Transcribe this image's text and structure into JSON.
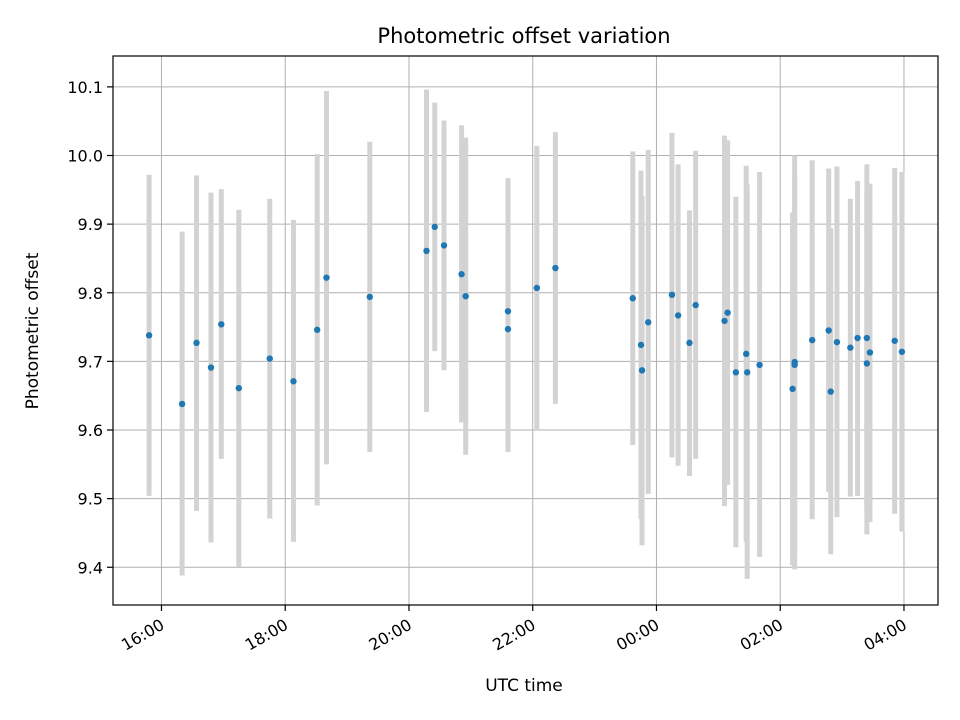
{
  "chart_data": {
    "type": "scatter",
    "title": "Photometric offset variation",
    "xlabel": "UTC time",
    "ylabel": "Photometric offset",
    "x_axis_kind": "time",
    "x_range": [
      "15:13",
      "04:33 +1 day"
    ],
    "ylim": [
      9.345,
      10.145
    ],
    "grid": true,
    "x_ticks": [
      {
        "time": "16:00",
        "label": "16:00"
      },
      {
        "time": "18:00",
        "label": "18:00"
      },
      {
        "time": "20:00",
        "label": "20:00"
      },
      {
        "time": "22:00",
        "label": "22:00"
      },
      {
        "time": "00:00 +1 day",
        "label": "00:00"
      },
      {
        "time": "02:00 +1 day",
        "label": "02:00"
      },
      {
        "time": "04:00 +1 day",
        "label": "04:00"
      }
    ],
    "y_ticks": [
      {
        "value": 9.4,
        "label": "9.4"
      },
      {
        "value": 9.5,
        "label": "9.5"
      },
      {
        "value": 9.6,
        "label": "9.6"
      },
      {
        "value": 9.7,
        "label": "9.7"
      },
      {
        "value": 9.8,
        "label": "9.8"
      },
      {
        "value": 9.9,
        "label": "9.9"
      },
      {
        "value": 10.0,
        "label": "10.0"
      },
      {
        "value": 10.1,
        "label": "10.1"
      }
    ],
    "marker_color": "#1f77b4",
    "errorbar_color": "#d3d3d3",
    "points": [
      {
        "time": "15:48",
        "y": 9.738,
        "ylow": 9.504,
        "yhigh": 9.972
      },
      {
        "time": "16:20",
        "y": 9.638,
        "ylow": 9.388,
        "yhigh": 9.889
      },
      {
        "time": "16:34",
        "y": 9.727,
        "ylow": 9.482,
        "yhigh": 9.971
      },
      {
        "time": "16:48",
        "y": 9.691,
        "ylow": 9.436,
        "yhigh": 9.946
      },
      {
        "time": "16:58",
        "y": 9.754,
        "ylow": 9.558,
        "yhigh": 9.951
      },
      {
        "time": "17:15",
        "y": 9.661,
        "ylow": 9.401,
        "yhigh": 9.921
      },
      {
        "time": "17:45",
        "y": 9.704,
        "ylow": 9.471,
        "yhigh": 9.937
      },
      {
        "time": "18:08",
        "y": 9.671,
        "ylow": 9.437,
        "yhigh": 9.906
      },
      {
        "time": "18:31",
        "y": 9.746,
        "ylow": 9.49,
        "yhigh": 10.002
      },
      {
        "time": "18:40",
        "y": 9.822,
        "ylow": 9.55,
        "yhigh": 10.094
      },
      {
        "time": "19:22",
        "y": 9.794,
        "ylow": 9.568,
        "yhigh": 10.02
      },
      {
        "time": "20:17",
        "y": 9.861,
        "ylow": 9.626,
        "yhigh": 10.096
      },
      {
        "time": "20:25",
        "y": 9.896,
        "ylow": 9.715,
        "yhigh": 10.077
      },
      {
        "time": "20:34",
        "y": 9.869,
        "ylow": 9.687,
        "yhigh": 10.051
      },
      {
        "time": "20:51",
        "y": 9.827,
        "ylow": 9.611,
        "yhigh": 10.044
      },
      {
        "time": "20:55",
        "y": 9.795,
        "ylow": 9.564,
        "yhigh": 10.026
      },
      {
        "time": "21:36",
        "y": 9.773,
        "ylow": 9.62,
        "yhigh": 9.927
      },
      {
        "time": "21:36",
        "y": 9.747,
        "ylow": 9.568,
        "yhigh": 9.967
      },
      {
        "time": "22:04",
        "y": 9.807,
        "ylow": 9.6,
        "yhigh": 10.014
      },
      {
        "time": "22:22",
        "y": 9.836,
        "ylow": 9.638,
        "yhigh": 10.034
      },
      {
        "time": "23:37",
        "y": 9.792,
        "ylow": 9.578,
        "yhigh": 10.006
      },
      {
        "time": "23:45",
        "y": 9.724,
        "ylow": 9.47,
        "yhigh": 9.978
      },
      {
        "time": "23:46",
        "y": 9.687,
        "ylow": 9.432,
        "yhigh": 9.941
      },
      {
        "time": "23:52",
        "y": 9.757,
        "ylow": 9.507,
        "yhigh": 10.008
      },
      {
        "time": "00:15 +1 day",
        "y": 9.797,
        "ylow": 9.56,
        "yhigh": 10.033
      },
      {
        "time": "00:21 +1 day",
        "y": 9.767,
        "ylow": 9.548,
        "yhigh": 9.987
      },
      {
        "time": "00:32 +1 day",
        "y": 9.727,
        "ylow": 9.533,
        "yhigh": 9.92
      },
      {
        "time": "00:38 +1 day",
        "y": 9.782,
        "ylow": 9.558,
        "yhigh": 10.007
      },
      {
        "time": "01:06 +1 day",
        "y": 9.759,
        "ylow": 9.489,
        "yhigh": 10.029
      },
      {
        "time": "01:09 +1 day",
        "y": 9.771,
        "ylow": 9.52,
        "yhigh": 10.022
      },
      {
        "time": "01:17 +1 day",
        "y": 9.684,
        "ylow": 9.429,
        "yhigh": 9.94
      },
      {
        "time": "01:27 +1 day",
        "y": 9.711,
        "ylow": 9.437,
        "yhigh": 9.985
      },
      {
        "time": "01:28 +1 day",
        "y": 9.684,
        "ylow": 9.383,
        "yhigh": 9.958
      },
      {
        "time": "01:40 +1 day",
        "y": 9.695,
        "ylow": 9.415,
        "yhigh": 9.976
      },
      {
        "time": "02:12 +1 day",
        "y": 9.66,
        "ylow": 9.403,
        "yhigh": 9.917
      },
      {
        "time": "02:14 +1 day",
        "y": 9.699,
        "ylow": 9.397,
        "yhigh": 10.0
      },
      {
        "time": "02:14 +1 day",
        "y": 9.695,
        "ylow": 9.42,
        "yhigh": 9.97
      },
      {
        "time": "02:31 +1 day",
        "y": 9.731,
        "ylow": 9.47,
        "yhigh": 9.993
      },
      {
        "time": "02:47 +1 day",
        "y": 9.745,
        "ylow": 9.51,
        "yhigh": 9.981
      },
      {
        "time": "02:49 +1 day",
        "y": 9.656,
        "ylow": 9.419,
        "yhigh": 9.894
      },
      {
        "time": "02:55 +1 day",
        "y": 9.728,
        "ylow": 9.473,
        "yhigh": 9.984
      },
      {
        "time": "03:08 +1 day",
        "y": 9.72,
        "ylow": 9.503,
        "yhigh": 9.937
      },
      {
        "time": "03:15 +1 day",
        "y": 9.734,
        "ylow": 9.504,
        "yhigh": 9.963
      },
      {
        "time": "03:24 +1 day",
        "y": 9.697,
        "ylow": 9.448,
        "yhigh": 9.947
      },
      {
        "time": "03:24 +1 day",
        "y": 9.734,
        "ylow": 9.481,
        "yhigh": 9.987
      },
      {
        "time": "03:27 +1 day",
        "y": 9.713,
        "ylow": 9.466,
        "yhigh": 9.959
      },
      {
        "time": "03:51 +1 day",
        "y": 9.73,
        "ylow": 9.478,
        "yhigh": 9.982
      },
      {
        "time": "03:58 +1 day",
        "y": 9.714,
        "ylow": 9.452,
        "yhigh": 9.976
      }
    ]
  }
}
